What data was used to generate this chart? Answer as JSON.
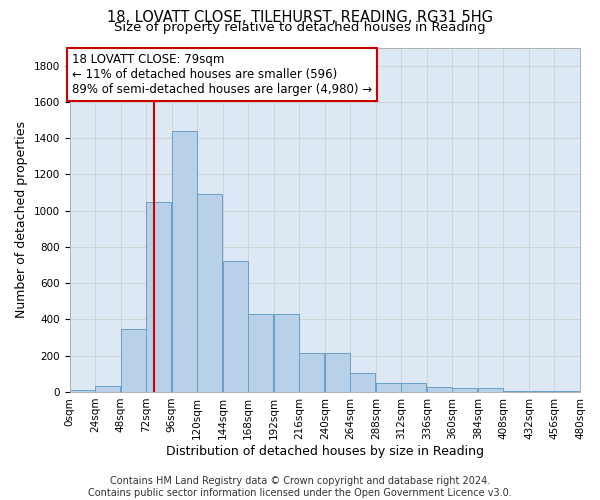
{
  "title_line1": "18, LOVATT CLOSE, TILEHURST, READING, RG31 5HG",
  "title_line2": "Size of property relative to detached houses in Reading",
  "xlabel": "Distribution of detached houses by size in Reading",
  "ylabel": "Number of detached properties",
  "bin_labels": [
    "0sqm",
    "24sqm",
    "48sqm",
    "72sqm",
    "96sqm",
    "120sqm",
    "144sqm",
    "168sqm",
    "192sqm",
    "216sqm",
    "240sqm",
    "264sqm",
    "288sqm",
    "312sqm",
    "336sqm",
    "360sqm",
    "384sqm",
    "408sqm",
    "432sqm",
    "456sqm",
    "480sqm"
  ],
  "bar_heights": [
    10,
    32,
    350,
    1050,
    1440,
    1090,
    725,
    430,
    430,
    215,
    215,
    103,
    50,
    47,
    30,
    20,
    20,
    5,
    3,
    3,
    2
  ],
  "bar_color": "#b8d0e8",
  "bar_edge_color": "#6a9fc8",
  "vline_x": 79,
  "vline_color": "#cc0000",
  "annotation_text": "18 LOVATT CLOSE: 79sqm\n← 11% of detached houses are smaller (596)\n89% of semi-detached houses are larger (4,980) →",
  "annotation_box_color": "#ffffff",
  "annotation_box_edge": "#cc0000",
  "ylim": [
    0,
    1900
  ],
  "yticks": [
    0,
    200,
    400,
    600,
    800,
    1000,
    1200,
    1400,
    1600,
    1800
  ],
  "grid_color": "#d0d0d0",
  "bg_color": "#dce8f4",
  "footer_text": "Contains HM Land Registry data © Crown copyright and database right 2024.\nContains public sector information licensed under the Open Government Licence v3.0.",
  "title_fontsize": 10.5,
  "subtitle_fontsize": 9.5,
  "axis_label_fontsize": 9,
  "tick_fontsize": 7.5,
  "annotation_fontsize": 8.5,
  "footer_fontsize": 7
}
